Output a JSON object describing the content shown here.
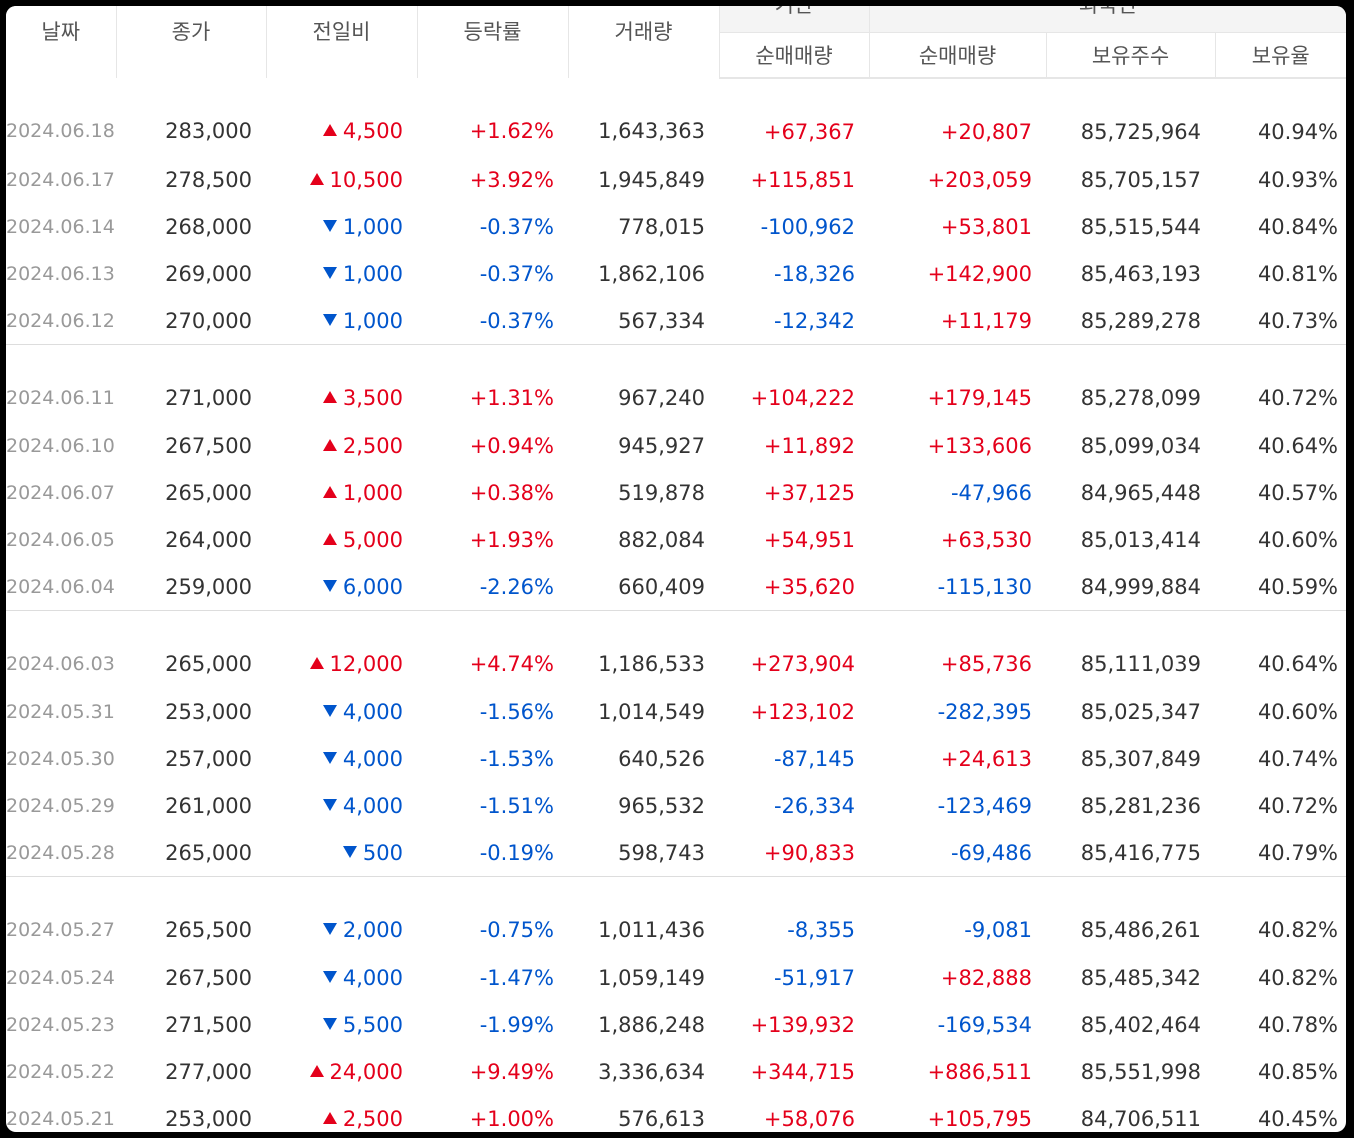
{
  "headers": {
    "date": "날짜",
    "close": "종가",
    "change": "전일비",
    "rate": "등락률",
    "volume": "거래량",
    "inst_group": "기관",
    "foreign_group": "외국인",
    "inst_net": "순매매량",
    "foreign_net": "순매매량",
    "foreign_holdings": "보유주수",
    "foreign_ratio": "보유율"
  },
  "colors": {
    "up": "#e4001b",
    "down": "#0055cc"
  },
  "rows": [
    {
      "date": "2024.06.18",
      "close": "283,000",
      "dir": "up",
      "change": "4,500",
      "rate": "+1.62%",
      "volume": "1,643,363",
      "inst": "+67,367",
      "foreign": "+20,807",
      "holdings": "85,725,964",
      "ratio": "40.94%"
    },
    {
      "date": "2024.06.17",
      "close": "278,500",
      "dir": "up",
      "change": "10,500",
      "rate": "+3.92%",
      "volume": "1,945,849",
      "inst": "+115,851",
      "foreign": "+203,059",
      "holdings": "85,705,157",
      "ratio": "40.93%"
    },
    {
      "date": "2024.06.14",
      "close": "268,000",
      "dir": "down",
      "change": "1,000",
      "rate": "-0.37%",
      "volume": "778,015",
      "inst": "-100,962",
      "foreign": "+53,801",
      "holdings": "85,515,544",
      "ratio": "40.84%"
    },
    {
      "date": "2024.06.13",
      "close": "269,000",
      "dir": "down",
      "change": "1,000",
      "rate": "-0.37%",
      "volume": "1,862,106",
      "inst": "-18,326",
      "foreign": "+142,900",
      "holdings": "85,463,193",
      "ratio": "40.81%"
    },
    {
      "date": "2024.06.12",
      "close": "270,000",
      "dir": "down",
      "change": "1,000",
      "rate": "-0.37%",
      "volume": "567,334",
      "inst": "-12,342",
      "foreign": "+11,179",
      "holdings": "85,289,278",
      "ratio": "40.73%"
    },
    {
      "date": "2024.06.11",
      "close": "271,000",
      "dir": "up",
      "change": "3,500",
      "rate": "+1.31%",
      "volume": "967,240",
      "inst": "+104,222",
      "foreign": "+179,145",
      "holdings": "85,278,099",
      "ratio": "40.72%"
    },
    {
      "date": "2024.06.10",
      "close": "267,500",
      "dir": "up",
      "change": "2,500",
      "rate": "+0.94%",
      "volume": "945,927",
      "inst": "+11,892",
      "foreign": "+133,606",
      "holdings": "85,099,034",
      "ratio": "40.64%"
    },
    {
      "date": "2024.06.07",
      "close": "265,000",
      "dir": "up",
      "change": "1,000",
      "rate": "+0.38%",
      "volume": "519,878",
      "inst": "+37,125",
      "foreign": "-47,966",
      "holdings": "84,965,448",
      "ratio": "40.57%"
    },
    {
      "date": "2024.06.05",
      "close": "264,000",
      "dir": "up",
      "change": "5,000",
      "rate": "+1.93%",
      "volume": "882,084",
      "inst": "+54,951",
      "foreign": "+63,530",
      "holdings": "85,013,414",
      "ratio": "40.60%"
    },
    {
      "date": "2024.06.04",
      "close": "259,000",
      "dir": "down",
      "change": "6,000",
      "rate": "-2.26%",
      "volume": "660,409",
      "inst": "+35,620",
      "foreign": "-115,130",
      "holdings": "84,999,884",
      "ratio": "40.59%"
    },
    {
      "date": "2024.06.03",
      "close": "265,000",
      "dir": "up",
      "change": "12,000",
      "rate": "+4.74%",
      "volume": "1,186,533",
      "inst": "+273,904",
      "foreign": "+85,736",
      "holdings": "85,111,039",
      "ratio": "40.64%"
    },
    {
      "date": "2024.05.31",
      "close": "253,000",
      "dir": "down",
      "change": "4,000",
      "rate": "-1.56%",
      "volume": "1,014,549",
      "inst": "+123,102",
      "foreign": "-282,395",
      "holdings": "85,025,347",
      "ratio": "40.60%"
    },
    {
      "date": "2024.05.30",
      "close": "257,000",
      "dir": "down",
      "change": "4,000",
      "rate": "-1.53%",
      "volume": "640,526",
      "inst": "-87,145",
      "foreign": "+24,613",
      "holdings": "85,307,849",
      "ratio": "40.74%"
    },
    {
      "date": "2024.05.29",
      "close": "261,000",
      "dir": "down",
      "change": "4,000",
      "rate": "-1.51%",
      "volume": "965,532",
      "inst": "-26,334",
      "foreign": "-123,469",
      "holdings": "85,281,236",
      "ratio": "40.72%"
    },
    {
      "date": "2024.05.28",
      "close": "265,000",
      "dir": "down",
      "change": "500",
      "rate": "-0.19%",
      "volume": "598,743",
      "inst": "+90,833",
      "foreign": "-69,486",
      "holdings": "85,416,775",
      "ratio": "40.79%"
    },
    {
      "date": "2024.05.27",
      "close": "265,500",
      "dir": "down",
      "change": "2,000",
      "rate": "-0.75%",
      "volume": "1,011,436",
      "inst": "-8,355",
      "foreign": "-9,081",
      "holdings": "85,486,261",
      "ratio": "40.82%"
    },
    {
      "date": "2024.05.24",
      "close": "267,500",
      "dir": "down",
      "change": "4,000",
      "rate": "-1.47%",
      "volume": "1,059,149",
      "inst": "-51,917",
      "foreign": "+82,888",
      "holdings": "85,485,342",
      "ratio": "40.82%"
    },
    {
      "date": "2024.05.23",
      "close": "271,500",
      "dir": "down",
      "change": "5,500",
      "rate": "-1.99%",
      "volume": "1,886,248",
      "inst": "+139,932",
      "foreign": "-169,534",
      "holdings": "85,402,464",
      "ratio": "40.78%"
    },
    {
      "date": "2024.05.22",
      "close": "277,000",
      "dir": "up",
      "change": "24,000",
      "rate": "+9.49%",
      "volume": "3,336,634",
      "inst": "+344,715",
      "foreign": "+886,511",
      "holdings": "85,551,998",
      "ratio": "40.85%"
    },
    {
      "date": "2024.05.21",
      "close": "253,000",
      "dir": "up",
      "change": "2,500",
      "rate": "+1.00%",
      "volume": "576,613",
      "inst": "+58,076",
      "foreign": "+105,795",
      "holdings": "84,706,511",
      "ratio": "40.45%"
    }
  ]
}
